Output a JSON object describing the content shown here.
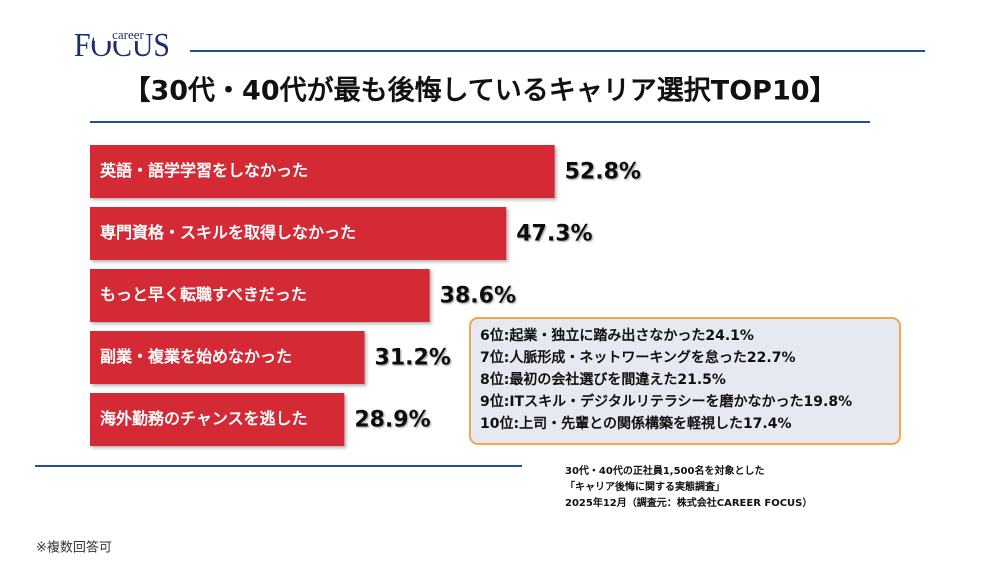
{
  "logo": {
    "main": "FOCUS",
    "small": "career"
  },
  "chart_data": {
    "type": "bar",
    "orientation": "horizontal",
    "title": "【30代・40代が最も後悔しているキャリア選択TOP10】",
    "categories": [
      "英語・語学学習をしなかった",
      "専門資格・スキルを取得しなかった",
      "もっと早く転職すべきだった",
      "副業・複業を始めなかった",
      "海外勤務のチャンスを逃した"
    ],
    "values": [
      52.8,
      47.3,
      38.6,
      31.2,
      28.9
    ],
    "value_labels": [
      "52.8%",
      "47.3%",
      "38.6%",
      "31.2%",
      "28.9%"
    ],
    "color": "#d42a35",
    "annotations": [
      "6位:起業・独立に踏み出さなかった24.1%",
      "7位:人脈形成・ネットワーキングを怠った22.7%",
      "8位:最初の会社選びを間違えた21.5%",
      "9位:ITスキル・デジタルリテラシーを磨かなかった19.8%",
      "10位:上司・先輩との関係構築を軽視した17.4%"
    ],
    "source": [
      "30代・40代の正社員1,500名を対象とした",
      "「キャリア後悔に関する実態調査」",
      "2025年12月（調査元：株式会社CAREER FOCUS）"
    ],
    "note": "※複数回答可"
  }
}
